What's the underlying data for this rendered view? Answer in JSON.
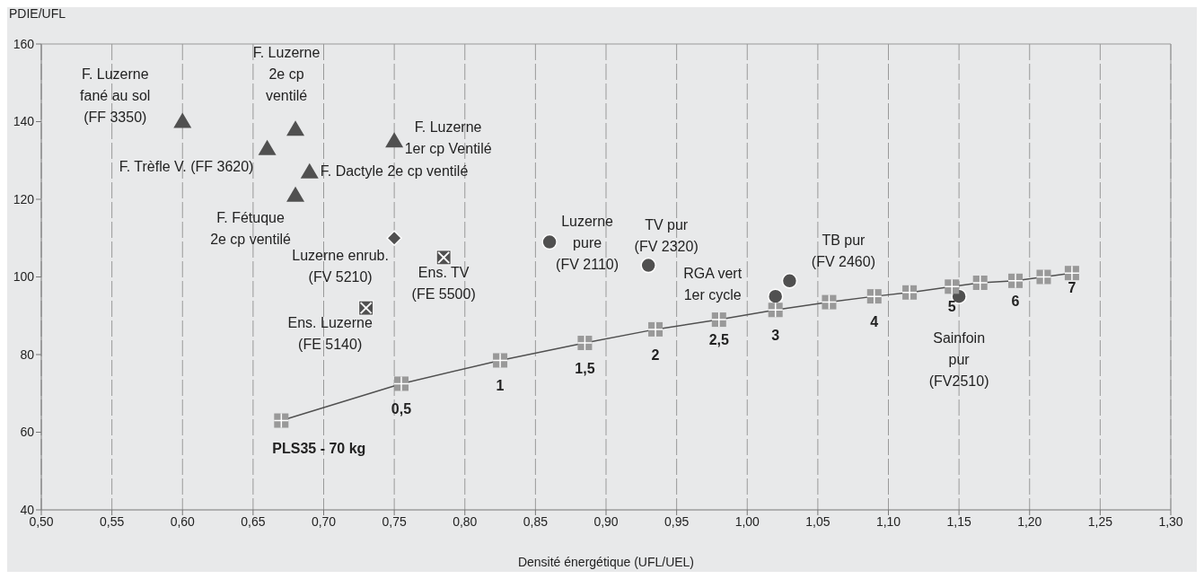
{
  "chart_data": {
    "type": "scatter",
    "xlabel": "Densité énergétique (UFL/UEL)",
    "ylabel": "PDIE/UFL",
    "xlim": [
      0.5,
      1.3
    ],
    "xticks": [
      {
        "value": 0.5,
        "label": "0,50"
      },
      {
        "value": 0.55,
        "label": "0,55"
      },
      {
        "value": 0.6,
        "label": "0,60"
      },
      {
        "value": 0.65,
        "label": "0,65"
      },
      {
        "value": 0.7,
        "label": "0,70"
      },
      {
        "value": 0.75,
        "label": "0,75"
      },
      {
        "value": 0.8,
        "label": "0,80"
      },
      {
        "value": 0.85,
        "label": "0,85"
      },
      {
        "value": 0.9,
        "label": "0,90"
      },
      {
        "value": 0.95,
        "label": "0,95"
      },
      {
        "value": 1.0,
        "label": "1,00"
      },
      {
        "value": 1.05,
        "label": "1,05"
      },
      {
        "value": 1.1,
        "label": "1,10"
      },
      {
        "value": 1.15,
        "label": "1,15"
      },
      {
        "value": 1.2,
        "label": "1,20"
      },
      {
        "value": 1.25,
        "label": "1,25"
      },
      {
        "value": 1.3,
        "label": "1,30"
      }
    ],
    "ylim": [
      40,
      160
    ],
    "yticks": [
      40,
      60,
      80,
      100,
      120,
      140,
      160
    ],
    "grid": "x",
    "series": [
      {
        "type": "scatter",
        "marker": "triangle",
        "color": "#505050",
        "x": [
          0.6,
          0.66,
          0.68,
          0.75,
          0.69,
          0.68
        ],
        "values": [
          140,
          133,
          138,
          135,
          127,
          121
        ]
      },
      {
        "type": "scatter",
        "marker": "diamond",
        "color": "#505050",
        "x": [
          0.75
        ],
        "values": [
          110
        ]
      },
      {
        "type": "scatter",
        "marker": "square",
        "color": "#505050",
        "x": [
          0.73,
          0.785
        ],
        "values": [
          92,
          105
        ]
      },
      {
        "type": "scatter",
        "marker": "circle",
        "color": "#505050",
        "x": [
          0.86,
          0.93,
          1.02,
          1.03,
          1.15
        ],
        "values": [
          109,
          103,
          95,
          99,
          95
        ]
      },
      {
        "type": "line",
        "marker": "square",
        "line_style": "solid",
        "color": "#999999",
        "x": [
          0.67,
          0.755,
          0.825,
          0.885,
          0.935,
          0.98,
          1.02,
          1.058,
          1.09,
          1.115,
          1.145,
          1.165,
          1.19,
          1.21,
          1.23
        ],
        "values": [
          63,
          72.5,
          78.5,
          83,
          86.5,
          89,
          91.5,
          93.5,
          95,
          96,
          97.5,
          98.5,
          99,
          100,
          101
        ]
      }
    ],
    "annotations": [
      {
        "text": "F. Luzerne\nfané au sol\n(FF 3350)",
        "x": 0.6,
        "y": 140
      },
      {
        "text": "F. Trèfle V. (FF 3620)",
        "x": 0.66,
        "y": 133
      },
      {
        "text": "F. Luzerne\n2e cp\nventilé",
        "x": 0.68,
        "y": 138
      },
      {
        "text": "F. Luzerne\n1er cp Ventilé",
        "x": 0.75,
        "y": 135
      },
      {
        "text": "F. Dactyle 2e cp ventilé",
        "x": 0.69,
        "y": 127
      },
      {
        "text": "F. Fétuque\n2e cp ventilé",
        "x": 0.68,
        "y": 121
      },
      {
        "text": "Luzerne enrub.\n(FV 5210)",
        "x": 0.75,
        "y": 110
      },
      {
        "text": "Ens. Luzerne\n(FE 5140)",
        "x": 0.73,
        "y": 92
      },
      {
        "text": "Ens. TV\n(FE 5500)",
        "x": 0.785,
        "y": 105
      },
      {
        "text": "Luzerne\npure\n(FV 2110)",
        "x": 0.86,
        "y": 109
      },
      {
        "text": "TV pur\n(FV 2320)",
        "x": 0.93,
        "y": 103
      },
      {
        "text": "RGA vert\n1er cycle",
        "x": 1.02,
        "y": 95
      },
      {
        "text": "TB pur\n(FV 2460)",
        "x": 1.03,
        "y": 99
      },
      {
        "text": "Sainfoin\npur\n(FV2510)",
        "x": 1.15,
        "y": 95
      },
      {
        "text": "PLS35 - 70 kg",
        "x": 0.67,
        "y": 63
      },
      {
        "text": "0,5",
        "x": 0.755,
        "y": 72.5
      },
      {
        "text": "1",
        "x": 0.825,
        "y": 78.5
      },
      {
        "text": "1,5",
        "x": 0.885,
        "y": 83
      },
      {
        "text": "2",
        "x": 0.935,
        "y": 86.5
      },
      {
        "text": "2,5",
        "x": 0.98,
        "y": 89
      },
      {
        "text": "3",
        "x": 1.02,
        "y": 91.5
      },
      {
        "text": "4",
        "x": 1.09,
        "y": 95
      },
      {
        "text": "5",
        "x": 1.145,
        "y": 97.5
      },
      {
        "text": "6",
        "x": 1.19,
        "y": 99
      },
      {
        "text": "7",
        "x": 1.23,
        "y": 101
      }
    ]
  }
}
